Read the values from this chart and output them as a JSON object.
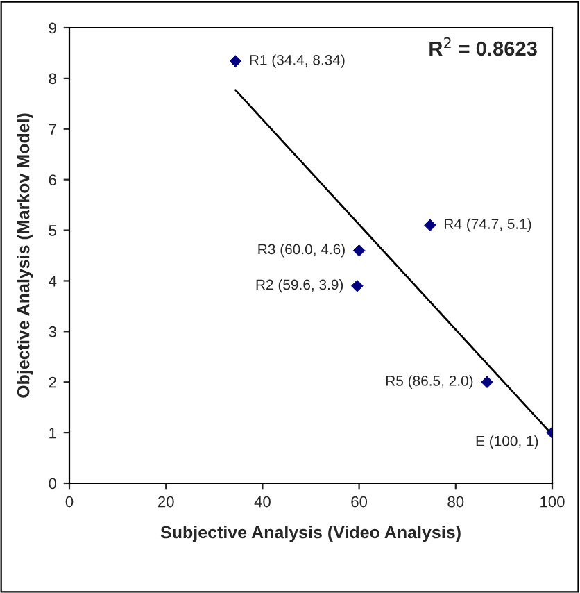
{
  "chart_data": {
    "type": "scatter",
    "xlabel": "Subjective Analysis (Video Analysis)",
    "ylabel": "Objective Analysis (Markov Model)",
    "x": [
      34.4,
      59.6,
      60.0,
      74.7,
      86.5,
      100
    ],
    "series": [
      {
        "color": "#000080",
        "marker": "diamond",
        "values": [
          8.34,
          3.9,
          4.6,
          5.1,
          2.0,
          1
        ]
      },
      {
        "type": "line",
        "color": "#000000",
        "marker": "none",
        "line_style": "solid",
        "x": [
          34.4,
          100
        ],
        "values": [
          7.77,
          0.96
        ]
      }
    ],
    "xlim": [
      0,
      100
    ],
    "xticks": [
      0,
      20,
      40,
      60,
      80,
      100
    ],
    "ylim": [
      0,
      9
    ],
    "yticks": [
      0,
      1,
      2,
      3,
      4,
      5,
      6,
      7,
      8,
      9
    ],
    "grid": false,
    "legend": false,
    "annotations": [
      {
        "text": "R1 (34.4, 8.34)",
        "x": 34.4,
        "y": 8.34
      },
      {
        "text": "R2 (59.6, 3.9)",
        "x": 59.6,
        "y": 3.9
      },
      {
        "text": "R3 (60.0, 4.6)",
        "x": 60.0,
        "y": 4.6
      },
      {
        "text": "R4 (74.7, 5.1)",
        "x": 74.7,
        "y": 5.1
      },
      {
        "text": "R5 (86.5, 2.0)",
        "x": 86.5,
        "y": 2.0
      },
      {
        "text": "E (100, 1)",
        "x": 100,
        "y": 1
      },
      "R$^{2}$ = 0.8623"
    ]
  }
}
